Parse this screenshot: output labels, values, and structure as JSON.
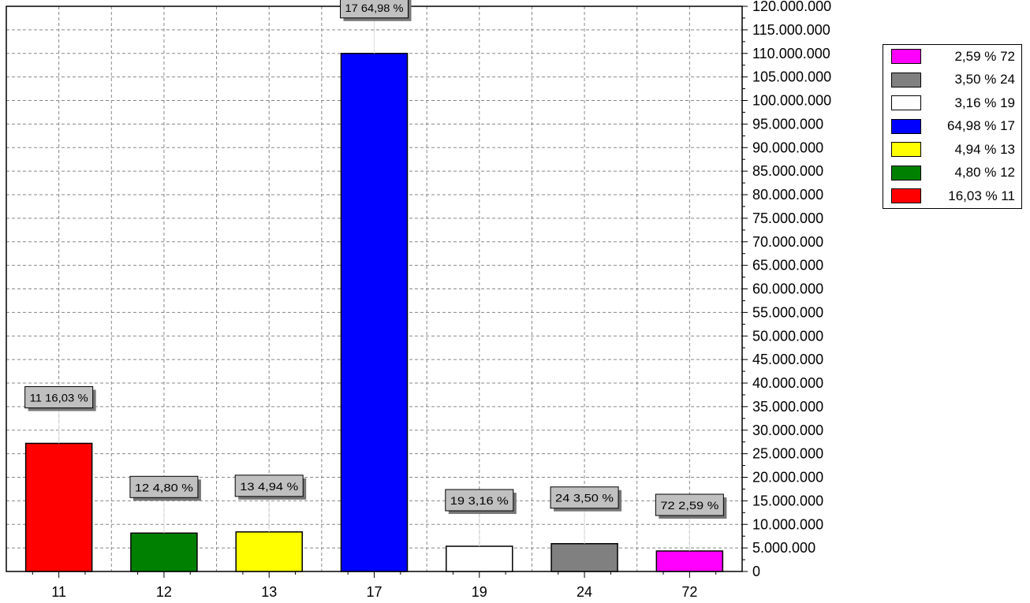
{
  "chart_data": {
    "type": "bar",
    "categories": [
      "11",
      "12",
      "13",
      "17",
      "19",
      "24",
      "72"
    ],
    "values": [
      27200000,
      8150000,
      8400000,
      110000000,
      5350000,
      5900000,
      4350000
    ],
    "bar_colors": [
      "#ff0000",
      "#008000",
      "#ffff00",
      "#0000ff",
      "#ffffff",
      "#808080",
      "#ff00ff"
    ],
    "data_labels": [
      "11 16,03 %",
      "12 4,80 %",
      "13 4,94 %",
      "17 64,98 %",
      "19 3,16 %",
      "24 3,50 %",
      "72 2,59 %"
    ],
    "ylim": [
      0,
      120000000
    ],
    "y_step": 5000000,
    "y_ticks": [
      "0",
      "5.000.000",
      "10.000.000",
      "15.000.000",
      "20.000.000",
      "25.000.000",
      "30.000.000",
      "35.000.000",
      "40.000.000",
      "45.000.000",
      "50.000.000",
      "55.000.000",
      "60.000.000",
      "65.000.000",
      "70.000.000",
      "75.000.000",
      "80.000.000",
      "85.000.000",
      "90.000.000",
      "95.000.000",
      "100.000.000",
      "105.000.000",
      "110.000.000",
      "115.000.000",
      "120.000.000"
    ],
    "y_axis_side": "right",
    "grid": true,
    "legend_position": "top-right",
    "legend": [
      {
        "label": "2,59 % 72",
        "color": "#ff00ff"
      },
      {
        "label": "3,50 % 24",
        "color": "#808080"
      },
      {
        "label": "3,16 % 19",
        "color": "#ffffff"
      },
      {
        "label": "64,98 % 17",
        "color": "#0000ff"
      },
      {
        "label": "4,94 % 13",
        "color": "#ffff00"
      },
      {
        "label": "4,80 % 12",
        "color": "#008000"
      },
      {
        "label": "16,03 % 11",
        "color": "#ff0000"
      }
    ]
  }
}
